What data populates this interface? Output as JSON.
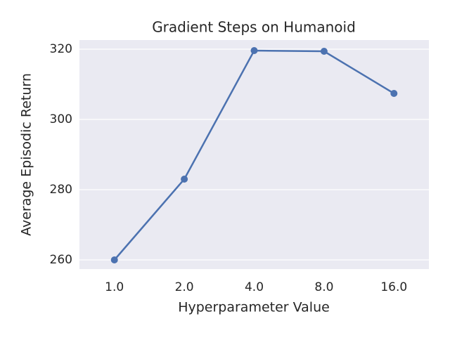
{
  "chart_data": {
    "type": "line",
    "title": "Gradient Steps on Humanoid",
    "x_label": "Hyperparameter Value",
    "y_label": "Average Episodic Return",
    "categories": [
      "1.0",
      "2.0",
      "4.0",
      "8.0",
      "16.0"
    ],
    "series": [
      {
        "color": "#4c72b0",
        "values": [
          260,
          283,
          319.6,
          319.4,
          307.4
        ]
      }
    ],
    "ylim": [
      257.4,
      322.6
    ],
    "yticks": [
      260,
      280,
      300,
      320
    ],
    "grid": true
  }
}
